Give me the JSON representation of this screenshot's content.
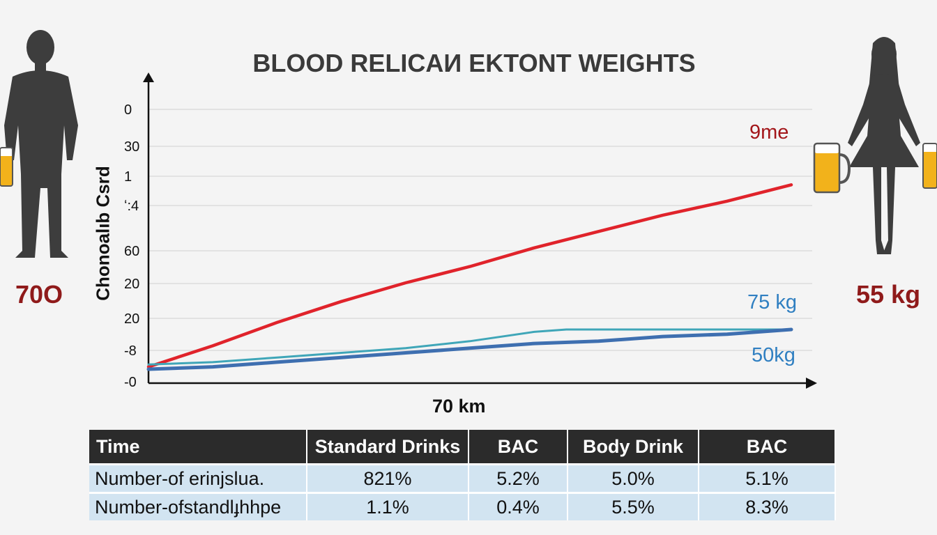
{
  "colors": {
    "series_red": "#e0232b",
    "series_blue": "#3e6fb0",
    "series_teal": "#3fa6b8",
    "weight_label": "#8f1a1a",
    "series_label_red": "#a3161a",
    "series_label_blue": "#2f7fc1",
    "silhouette": "#3d3d3d",
    "beer": "#f2b21b",
    "table_header": "#2b2b2b",
    "table_row": "#d2e4f1"
  },
  "icons": {
    "left": "man-silhouette-with-beer-icon",
    "right": "woman-silhouette-with-beer-icons"
  },
  "figure": {
    "left_weight": "70O",
    "right_weight": "55 kg"
  },
  "chart_data": {
    "type": "line",
    "title": "BLOOD RELICAИ EKTONT  WEIGHTS",
    "ylabel": "Chonoalıb Csrd",
    "xlabel": "70 km",
    "y_tick_labels": [
      "0",
      "30",
      "1",
      "ʻ:4",
      "60",
      "20",
      "20",
      "-8",
      "-0"
    ],
    "x": [
      0,
      1
    ],
    "xlim": [
      0,
      1
    ],
    "ylim": [
      0,
      1
    ],
    "grid": true,
    "series": [
      {
        "name": "9me",
        "color": "#e0232b",
        "x": [
          0,
          0.1,
          0.2,
          0.3,
          0.4,
          0.5,
          0.6,
          0.7,
          0.8,
          0.9,
          1.0
        ],
        "values": [
          0.04,
          0.13,
          0.23,
          0.32,
          0.4,
          0.47,
          0.55,
          0.62,
          0.69,
          0.75,
          0.82
        ]
      },
      {
        "name": "75 kg",
        "color": "#3fa6b8",
        "x": [
          0,
          0.1,
          0.2,
          0.3,
          0.4,
          0.5,
          0.6,
          0.65,
          0.7,
          0.8,
          0.9,
          1.0
        ],
        "values": [
          0.05,
          0.06,
          0.08,
          0.1,
          0.12,
          0.15,
          0.19,
          0.2,
          0.2,
          0.2,
          0.2,
          0.2
        ]
      },
      {
        "name": "50kg",
        "color": "#3e6fb0",
        "x": [
          0,
          0.1,
          0.2,
          0.3,
          0.4,
          0.5,
          0.6,
          0.7,
          0.8,
          0.9,
          1.0
        ],
        "values": [
          0.03,
          0.04,
          0.06,
          0.08,
          0.1,
          0.12,
          0.14,
          0.15,
          0.17,
          0.18,
          0.2
        ]
      }
    ]
  },
  "table": {
    "headers": [
      "Time",
      "Standard Drinks",
      "BAC",
      "Body Drink",
      "BAC"
    ],
    "rows": [
      [
        "Number-of erinjslua.",
        "821%",
        "5.2%",
        "5.0%",
        "5.1%"
      ],
      [
        "Number-ofstandlɟhhpe",
        "1.1%",
        "0.4%",
        "5.5%",
        "8.3%"
      ]
    ]
  }
}
